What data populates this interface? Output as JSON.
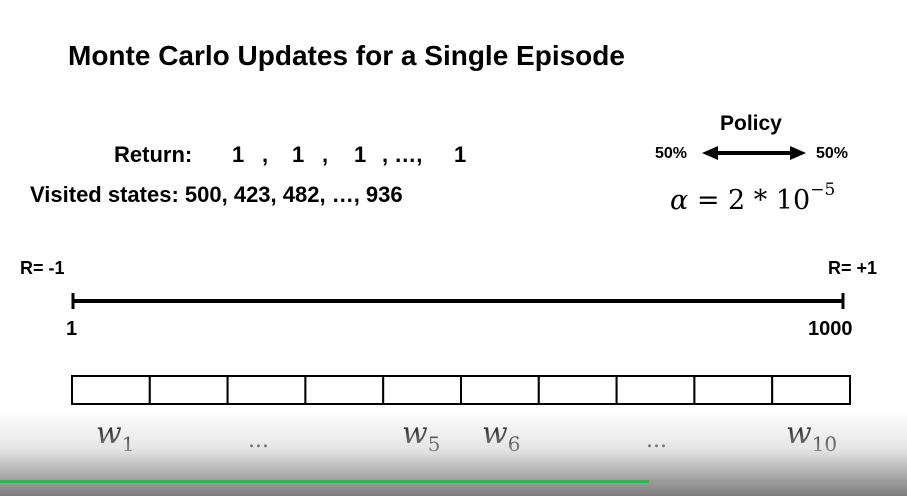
{
  "title": "Monte Carlo Updates for a Single Episode",
  "returns": {
    "label": "Return:",
    "values": [
      "1",
      ",",
      "1",
      ",",
      "1",
      ", …,",
      "1"
    ]
  },
  "visited": {
    "label": "Visited states:",
    "values": "500, 423, 482, …, 936"
  },
  "policy": {
    "title": "Policy",
    "left_pct": "50%",
    "right_pct": "50%"
  },
  "alpha": {
    "symbol": "α",
    "equals": " = 2 * 10",
    "exponent": "−5"
  },
  "state_line": {
    "left_reward": "R= -1",
    "right_reward": "R= +1",
    "left_state": "1",
    "right_state": "1000"
  },
  "weights": {
    "cells": 10,
    "labels": [
      {
        "sym": "w",
        "sub": "1"
      },
      {
        "sym": "w",
        "sub": "5"
      },
      {
        "sym": "w",
        "sub": "6"
      },
      {
        "sym": "w",
        "sub": "10"
      }
    ],
    "ellipsis": "..."
  },
  "video": {
    "progress_fraction": 0.715
  },
  "colors": {
    "progress": "#3cb043"
  }
}
